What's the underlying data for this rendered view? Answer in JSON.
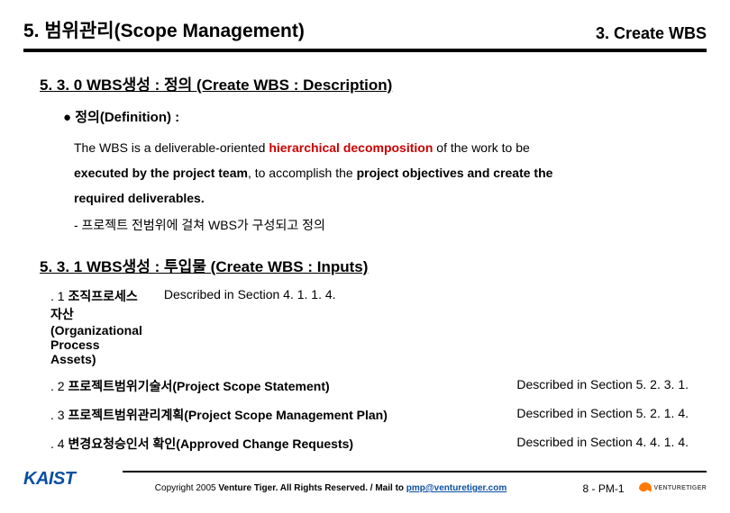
{
  "header": {
    "left": "5. 범위관리(Scope Management)",
    "right": "3. Create WBS"
  },
  "section530": {
    "title": "5. 3. 0  WBS생성 : 정의 (Create WBS : Description)",
    "defLabel": "●  정의(Definition) :",
    "body": {
      "p1a": "The WBS is a deliverable-oriented ",
      "p1red": "hierarchical decomposition",
      "p1b": " of the work to be",
      "p2a": "executed by the project team",
      "p2b": ", to accomplish the ",
      "p2c": "project objectives and create the",
      "p3": "required deliverables."
    },
    "note": "- 프로젝트 전범위에 걸쳐  WBS가 구성되고 정의"
  },
  "section531": {
    "title": "5. 3. 1 WBS생성 : 투입물 (Create WBS : Inputs)",
    "items": [
      {
        "num": ". 1 ",
        "bold": "조직프로세스자산(Organizational Process Assets)",
        "desc": "Described in Section 4. 1. 1. 4."
      },
      {
        "num": ". 2 ",
        "bold": "프로젝트범위기술서(Project Scope Statement)",
        "desc": "Described in Section 5. 2. 3. 1."
      },
      {
        "num": ". 3 ",
        "bold": "프로젝트범위관리계획(Project Scope Management Plan)",
        "desc": "Described in Section 5. 2. 1. 4."
      },
      {
        "num": ". 4 ",
        "bold": "변경요청승인서 확인(Approved Change Requests)",
        "desc": "Described in Section 4. 4. 1. 4."
      }
    ]
  },
  "footer": {
    "kaist": "KAIST",
    "copy_a": "Copyright 2005 ",
    "copy_b": "Venture Tiger.",
    "copy_c": " All Rights Reserved. / Mail to ",
    "mail": "pmp@venturetiger.com",
    "page": "8 - PM-1",
    "vt": "VENTURETIGER"
  },
  "colors": {
    "red": "#cc0000",
    "blue": "#0b4fa0",
    "black": "#000000",
    "bg": "#ffffff"
  }
}
